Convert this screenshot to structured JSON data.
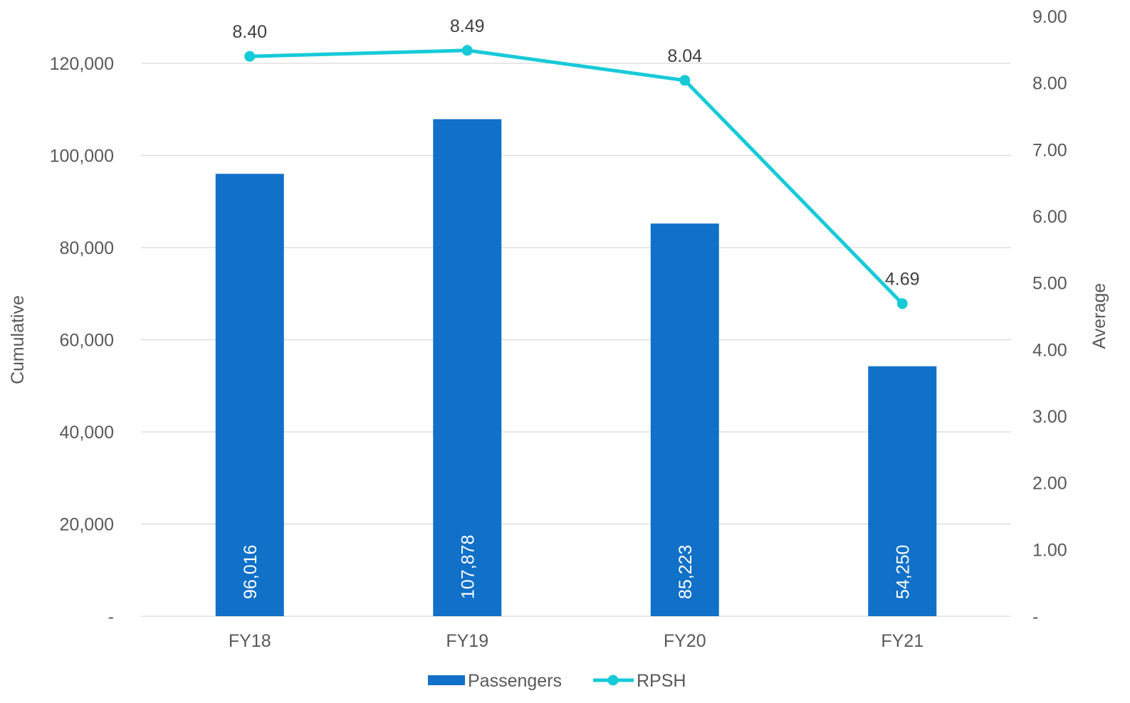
{
  "chart_data": {
    "type": "bar",
    "categories": [
      "FY18",
      "FY19",
      "FY20",
      "FY21"
    ],
    "series": [
      {
        "name": "Passengers",
        "type": "bar",
        "axis": "left",
        "values": [
          96016,
          107878,
          85223,
          54250
        ],
        "labels": [
          "96,016",
          "107,878",
          "85,223",
          "54,250"
        ],
        "color": "#1170C8"
      },
      {
        "name": "RPSH",
        "type": "line",
        "axis": "right",
        "values": [
          8.4,
          8.49,
          8.04,
          4.69
        ],
        "labels": [
          "8.40",
          "8.49",
          "8.04",
          "4.69"
        ],
        "color": "#17CAD8"
      }
    ],
    "y_left": {
      "label": "Cumulative",
      "range": [
        0,
        120000
      ],
      "ticks": [
        "-",
        "20,000",
        "40,000",
        "60,000",
        "80,000",
        "100,000",
        "120,000"
      ]
    },
    "y_right": {
      "label": "Average",
      "range": [
        0,
        9
      ],
      "ticks": [
        "-",
        "1.00",
        "2.00",
        "3.00",
        "4.00",
        "5.00",
        "6.00",
        "7.00",
        "8.00",
        "9.00"
      ]
    },
    "grid": true,
    "legend": "bottom-center",
    "colors": {
      "grid": "#D9D9D9",
      "text": "#595959",
      "axis_text": "#404040"
    }
  }
}
